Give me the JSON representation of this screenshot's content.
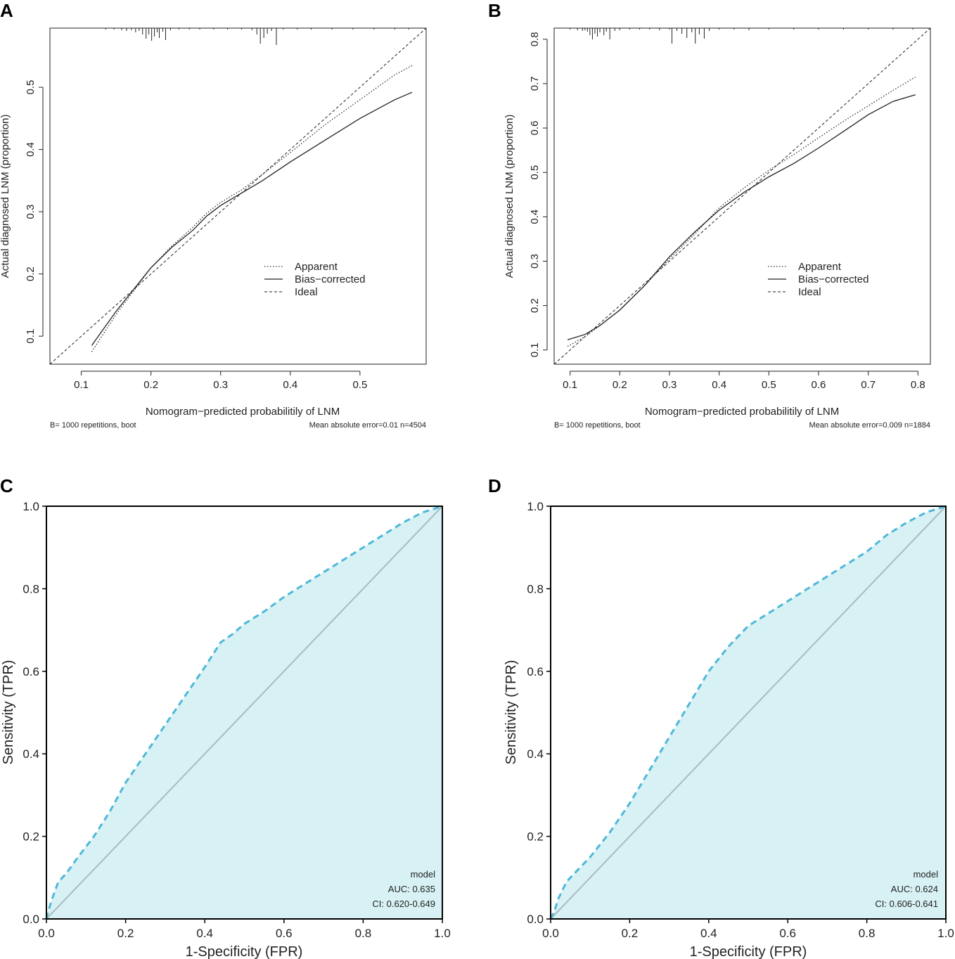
{
  "panels": {
    "A": {
      "letter": "A"
    },
    "B": {
      "letter": "B"
    },
    "C": {
      "letter": "C"
    },
    "D": {
      "letter": "D"
    }
  },
  "chart_data": [
    {
      "panel": "A",
      "type": "line",
      "xlabel": "Nomogram−predicted probabilitily of LNM",
      "ylabel": "Actual diagnosed LNM (proportion)",
      "xlim": [
        0.055,
        0.595
      ],
      "ylim": [
        0.055,
        0.595
      ],
      "xticks": [
        0.1,
        0.2,
        0.3,
        0.4,
        0.5
      ],
      "yticks": [
        0.1,
        0.2,
        0.3,
        0.4,
        0.5
      ],
      "footer_left": "B= 1000 repetitions, boot",
      "footer_right": "Mean absolute error=0.01 n=4504",
      "legend": {
        "position": "center-right",
        "entries": [
          "Apparent",
          "Bias−corrected",
          "Ideal"
        ]
      },
      "series": [
        {
          "name": "Apparent",
          "style": "dotted",
          "x": [
            0.115,
            0.15,
            0.18,
            0.2,
            0.23,
            0.26,
            0.28,
            0.3,
            0.33,
            0.36,
            0.4,
            0.45,
            0.5,
            0.55,
            0.575
          ],
          "y": [
            0.075,
            0.135,
            0.18,
            0.21,
            0.245,
            0.275,
            0.298,
            0.315,
            0.335,
            0.36,
            0.395,
            0.44,
            0.48,
            0.52,
            0.535
          ]
        },
        {
          "name": "Bias−corrected",
          "style": "solid",
          "x": [
            0.115,
            0.15,
            0.18,
            0.2,
            0.23,
            0.26,
            0.28,
            0.3,
            0.33,
            0.36,
            0.4,
            0.45,
            0.5,
            0.55,
            0.575
          ],
          "y": [
            0.085,
            0.14,
            0.182,
            0.21,
            0.243,
            0.27,
            0.293,
            0.31,
            0.33,
            0.35,
            0.38,
            0.415,
            0.45,
            0.48,
            0.492
          ]
        },
        {
          "name": "Ideal",
          "style": "dashed",
          "x": [
            0.055,
            0.595
          ],
          "y": [
            0.055,
            0.595
          ]
        }
      ],
      "rug": [
        {
          "x": 0.135,
          "h": 2
        },
        {
          "x": 0.147,
          "h": 2
        },
        {
          "x": 0.158,
          "h": 3
        },
        {
          "x": 0.165,
          "h": 4
        },
        {
          "x": 0.172,
          "h": 3
        },
        {
          "x": 0.178,
          "h": 6
        },
        {
          "x": 0.183,
          "h": 4
        },
        {
          "x": 0.188,
          "h": 9
        },
        {
          "x": 0.193,
          "h": 15
        },
        {
          "x": 0.197,
          "h": 9
        },
        {
          "x": 0.201,
          "h": 18
        },
        {
          "x": 0.205,
          "h": 12
        },
        {
          "x": 0.209,
          "h": 6
        },
        {
          "x": 0.212,
          "h": 14
        },
        {
          "x": 0.217,
          "h": 5
        },
        {
          "x": 0.221,
          "h": 17
        },
        {
          "x": 0.228,
          "h": 3
        },
        {
          "x": 0.24,
          "h": 2
        },
        {
          "x": 0.255,
          "h": 2
        },
        {
          "x": 0.27,
          "h": 2
        },
        {
          "x": 0.29,
          "h": 2
        },
        {
          "x": 0.31,
          "h": 2
        },
        {
          "x": 0.33,
          "h": 2
        },
        {
          "x": 0.345,
          "h": 3
        },
        {
          "x": 0.352,
          "h": 9
        },
        {
          "x": 0.357,
          "h": 22
        },
        {
          "x": 0.362,
          "h": 14
        },
        {
          "x": 0.367,
          "h": 8
        },
        {
          "x": 0.373,
          "h": 4
        },
        {
          "x": 0.38,
          "h": 24
        },
        {
          "x": 0.39,
          "h": 2
        },
        {
          "x": 0.41,
          "h": 2
        },
        {
          "x": 0.43,
          "h": 2
        },
        {
          "x": 0.46,
          "h": 2
        },
        {
          "x": 0.49,
          "h": 2
        },
        {
          "x": 0.52,
          "h": 2
        },
        {
          "x": 0.55,
          "h": 2
        },
        {
          "x": 0.57,
          "h": 2
        }
      ]
    },
    {
      "panel": "B",
      "type": "line",
      "xlabel": "Nomogram−predicted probabilitily of LNM",
      "ylabel": "Actual diagnosed LNM (proportion)",
      "xlim": [
        0.068,
        0.825
      ],
      "ylim": [
        0.068,
        0.825
      ],
      "xticks": [
        0.1,
        0.2,
        0.3,
        0.4,
        0.5,
        0.6,
        0.7,
        0.8
      ],
      "yticks": [
        0.1,
        0.2,
        0.3,
        0.4,
        0.5,
        0.6,
        0.7,
        0.8
      ],
      "footer_left": "B= 1000 repetitions, boot",
      "footer_right": "Mean absolute error=0.009 n=1884",
      "legend": {
        "position": "center-right",
        "entries": [
          "Apparent",
          "Bias−corrected",
          "Ideal"
        ]
      },
      "series": [
        {
          "name": "Apparent",
          "style": "dotted",
          "x": [
            0.095,
            0.13,
            0.16,
            0.2,
            0.25,
            0.3,
            0.35,
            0.4,
            0.45,
            0.5,
            0.55,
            0.6,
            0.65,
            0.7,
            0.75,
            0.795
          ],
          "y": [
            0.108,
            0.13,
            0.155,
            0.19,
            0.245,
            0.305,
            0.36,
            0.42,
            0.465,
            0.505,
            0.54,
            0.578,
            0.615,
            0.65,
            0.685,
            0.715
          ]
        },
        {
          "name": "Bias−corrected",
          "style": "solid",
          "x": [
            0.095,
            0.13,
            0.16,
            0.2,
            0.25,
            0.3,
            0.35,
            0.4,
            0.45,
            0.5,
            0.55,
            0.6,
            0.65,
            0.7,
            0.75,
            0.795
          ],
          "y": [
            0.123,
            0.135,
            0.155,
            0.19,
            0.245,
            0.31,
            0.365,
            0.415,
            0.455,
            0.49,
            0.52,
            0.555,
            0.592,
            0.63,
            0.66,
            0.675
          ]
        },
        {
          "name": "Ideal",
          "style": "dashed",
          "x": [
            0.068,
            0.825
          ],
          "y": [
            0.068,
            0.825
          ]
        }
      ],
      "rug": [
        {
          "x": 0.1,
          "h": 2
        },
        {
          "x": 0.115,
          "h": 3
        },
        {
          "x": 0.125,
          "h": 4
        },
        {
          "x": 0.13,
          "h": 3
        },
        {
          "x": 0.135,
          "h": 5
        },
        {
          "x": 0.14,
          "h": 10
        },
        {
          "x": 0.145,
          "h": 16
        },
        {
          "x": 0.15,
          "h": 8
        },
        {
          "x": 0.155,
          "h": 12
        },
        {
          "x": 0.16,
          "h": 6
        },
        {
          "x": 0.168,
          "h": 10
        },
        {
          "x": 0.173,
          "h": 5
        },
        {
          "x": 0.18,
          "h": 16
        },
        {
          "x": 0.19,
          "h": 4
        },
        {
          "x": 0.2,
          "h": 3
        },
        {
          "x": 0.22,
          "h": 2
        },
        {
          "x": 0.24,
          "h": 2
        },
        {
          "x": 0.26,
          "h": 2
        },
        {
          "x": 0.28,
          "h": 3
        },
        {
          "x": 0.3,
          "h": 2
        },
        {
          "x": 0.305,
          "h": 22
        },
        {
          "x": 0.315,
          "h": 4
        },
        {
          "x": 0.325,
          "h": 8
        },
        {
          "x": 0.335,
          "h": 14
        },
        {
          "x": 0.345,
          "h": 6
        },
        {
          "x": 0.352,
          "h": 22
        },
        {
          "x": 0.36,
          "h": 9
        },
        {
          "x": 0.37,
          "h": 15
        },
        {
          "x": 0.38,
          "h": 4
        },
        {
          "x": 0.4,
          "h": 2
        },
        {
          "x": 0.43,
          "h": 2
        },
        {
          "x": 0.46,
          "h": 3
        },
        {
          "x": 0.5,
          "h": 2
        },
        {
          "x": 0.55,
          "h": 2
        },
        {
          "x": 0.6,
          "h": 2
        },
        {
          "x": 0.65,
          "h": 2
        },
        {
          "x": 0.7,
          "h": 2
        },
        {
          "x": 0.75,
          "h": 2
        },
        {
          "x": 0.79,
          "h": 2
        }
      ]
    },
    {
      "panel": "C",
      "type": "area",
      "xlabel": "1-Specificity (FPR)",
      "ylabel": "Sensitivity (TPR)",
      "xlim": [
        0,
        1
      ],
      "ylim": [
        0,
        1
      ],
      "xticks": [
        0.0,
        0.2,
        0.4,
        0.6,
        0.8,
        1.0
      ],
      "yticks": [
        0.0,
        0.2,
        0.4,
        0.6,
        0.8,
        1.0
      ],
      "tick_labels": [
        "0.0",
        "0.2",
        "0.4",
        "0.6",
        "0.8",
        "1.0"
      ],
      "legend": {
        "position": "bottom-right",
        "title": "model",
        "auc": "AUC: 0.635",
        "ci": "CI: 0.620-0.649"
      },
      "colors": {
        "curve": "#4db8d8",
        "fill": "#d8f1f4",
        "diagonal": "#a8bcc0"
      },
      "series": [
        {
          "name": "ROC",
          "x": [
            0,
            0.005,
            0.015,
            0.03,
            0.05,
            0.08,
            0.12,
            0.16,
            0.2,
            0.25,
            0.3,
            0.35,
            0.4,
            0.44,
            0.47,
            0.5,
            0.55,
            0.6,
            0.65,
            0.7,
            0.75,
            0.8,
            0.85,
            0.9,
            0.95,
            1
          ],
          "y": [
            0,
            0.02,
            0.05,
            0.09,
            0.11,
            0.15,
            0.2,
            0.26,
            0.33,
            0.4,
            0.47,
            0.54,
            0.61,
            0.67,
            0.69,
            0.715,
            0.745,
            0.78,
            0.81,
            0.84,
            0.87,
            0.9,
            0.93,
            0.96,
            0.985,
            1
          ]
        },
        {
          "name": "Diagonal",
          "x": [
            0,
            1
          ],
          "y": [
            0,
            1
          ]
        }
      ]
    },
    {
      "panel": "D",
      "type": "area",
      "xlabel": "1-Specificity (FPR)",
      "ylabel": "Sensitivity (TPR)",
      "xlim": [
        0,
        1
      ],
      "ylim": [
        0,
        1
      ],
      "xticks": [
        0.0,
        0.2,
        0.4,
        0.6,
        0.8,
        1.0
      ],
      "yticks": [
        0.0,
        0.2,
        0.4,
        0.6,
        0.8,
        1.0
      ],
      "tick_labels": [
        "0.0",
        "0.2",
        "0.4",
        "0.6",
        "0.8",
        "1.0"
      ],
      "legend": {
        "position": "bottom-right",
        "title": "model",
        "auc": "AUC: 0.624",
        "ci": "CI: 0.606-0.641"
      },
      "colors": {
        "curve": "#4db8d8",
        "fill": "#d8f1f4",
        "diagonal": "#a8bcc0"
      },
      "series": [
        {
          "name": "ROC",
          "x": [
            0,
            0.01,
            0.02,
            0.04,
            0.06,
            0.1,
            0.15,
            0.2,
            0.25,
            0.3,
            0.35,
            0.4,
            0.45,
            0.5,
            0.55,
            0.6,
            0.65,
            0.7,
            0.75,
            0.8,
            0.85,
            0.9,
            0.95,
            1
          ],
          "y": [
            0,
            0.02,
            0.05,
            0.09,
            0.11,
            0.15,
            0.21,
            0.28,
            0.36,
            0.44,
            0.52,
            0.6,
            0.66,
            0.71,
            0.74,
            0.77,
            0.8,
            0.83,
            0.86,
            0.89,
            0.93,
            0.96,
            0.985,
            1
          ]
        },
        {
          "name": "Diagonal",
          "x": [
            0,
            1
          ],
          "y": [
            0,
            1
          ]
        }
      ]
    }
  ]
}
